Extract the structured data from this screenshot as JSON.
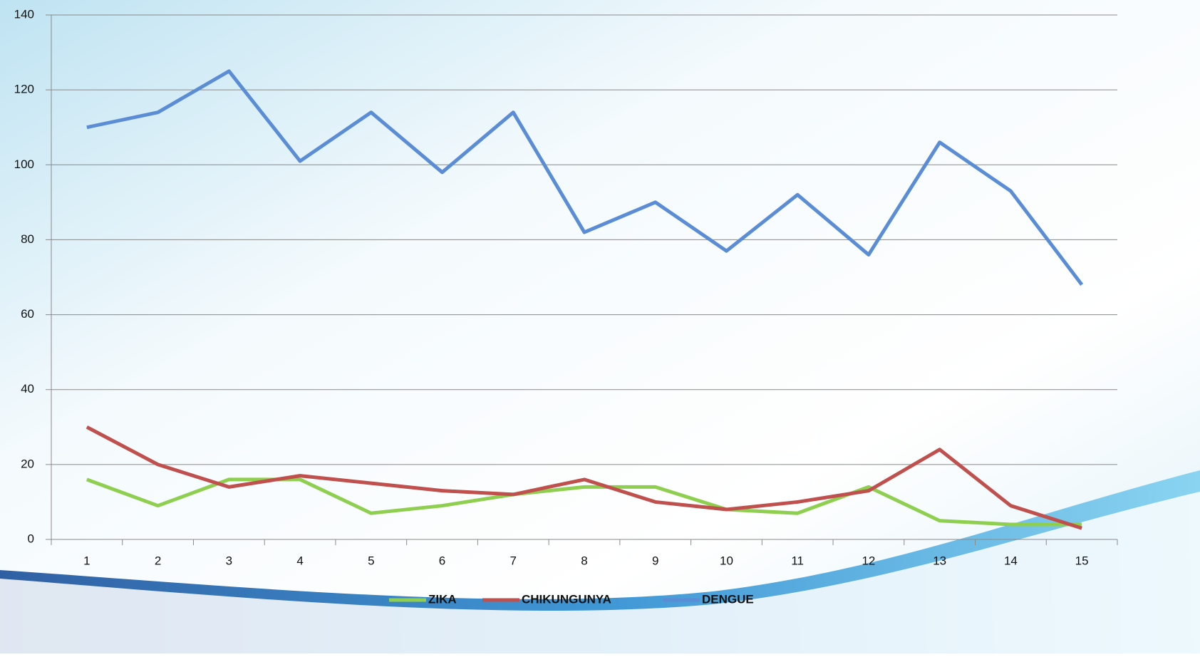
{
  "chart_data": {
    "type": "line",
    "categories": [
      "1",
      "2",
      "3",
      "4",
      "5",
      "6",
      "7",
      "8",
      "9",
      "10",
      "11",
      "12",
      "13",
      "14",
      "15"
    ],
    "series": [
      {
        "name": "ZIKA",
        "color": "#8fcf4f",
        "values": [
          16,
          9,
          16,
          16,
          7,
          9,
          12,
          14,
          14,
          8,
          7,
          14,
          5,
          4,
          4
        ]
      },
      {
        "name": "CHIKUNGUNYA",
        "color": "#c0504d",
        "values": [
          30,
          20,
          14,
          17,
          15,
          13,
          12,
          16,
          10,
          8,
          10,
          13,
          24,
          9,
          3
        ]
      },
      {
        "name": "DENGUE",
        "color": "#5a8dd5",
        "values": [
          110,
          114,
          125,
          101,
          114,
          98,
          114,
          82,
          90,
          77,
          92,
          76,
          106,
          93,
          68
        ]
      }
    ],
    "ylim": [
      0,
      140
    ],
    "yticks": [
      0,
      20,
      40,
      60,
      80,
      100,
      120,
      140
    ],
    "grid": true,
    "legend": "bottom"
  }
}
